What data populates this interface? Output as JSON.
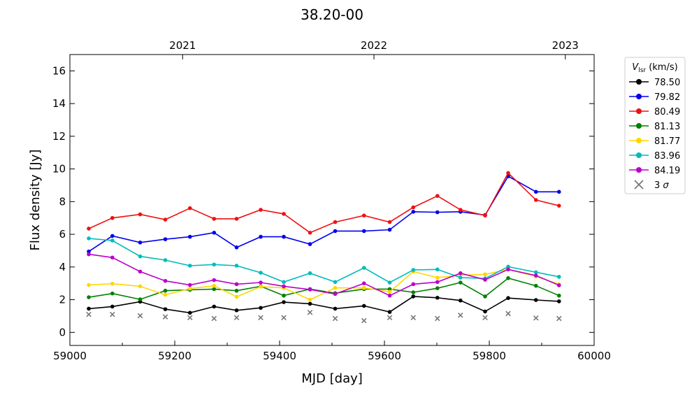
{
  "chart_data": {
    "type": "line",
    "title": "38.20-00",
    "xlabel": "MJD [day]",
    "ylabel": "Flux density [Jy]",
    "xlim": [
      59000,
      60000
    ],
    "ylim": [
      -0.8,
      17
    ],
    "xticks": [
      59000,
      59200,
      59400,
      59600,
      59800,
      60000
    ],
    "xtick_labels": [
      "59000",
      "59200",
      "59400",
      "59600",
      "59800",
      "60000"
    ],
    "yticks": [
      0,
      2,
      4,
      6,
      8,
      10,
      12,
      14,
      16
    ],
    "ytick_labels": [
      "0",
      "2",
      "4",
      "6",
      "8",
      "10",
      "12",
      "14",
      "16"
    ],
    "top_axis": {
      "ticks": [
        59215,
        59580,
        59945
      ],
      "labels": [
        "2021",
        "2022",
        "2023"
      ]
    },
    "grid": false,
    "legend": {
      "placement": "outside-right",
      "title_main": "V",
      "title_sub": "lsr",
      "title_unit": " (km/s)"
    },
    "x": [
      59036,
      59081,
      59134,
      59182,
      59229,
      59275,
      59318,
      59364,
      59408,
      59458,
      59506,
      59561,
      59610,
      59655,
      59701,
      59745,
      59792,
      59836,
      59889,
      59933
    ],
    "series": [
      {
        "name": "78.50",
        "color": "#000000",
        "values": [
          1.45,
          1.58,
          1.88,
          1.42,
          1.2,
          1.58,
          1.35,
          1.5,
          1.85,
          1.75,
          1.45,
          1.62,
          1.25,
          2.2,
          2.12,
          1.95,
          1.28,
          2.1,
          1.98,
          1.9
        ]
      },
      {
        "name": "79.82",
        "color": "#0000ee",
        "values": [
          4.95,
          5.9,
          5.5,
          5.7,
          5.85,
          6.1,
          5.2,
          5.85,
          5.85,
          5.4,
          6.2,
          6.2,
          6.28,
          7.38,
          7.35,
          7.38,
          7.18,
          9.55,
          8.6,
          8.6
        ]
      },
      {
        "name": "80.49",
        "color": "#ee1111",
        "values": [
          6.35,
          7.0,
          7.22,
          6.9,
          7.6,
          6.95,
          6.95,
          7.5,
          7.25,
          6.1,
          6.75,
          7.15,
          6.75,
          7.65,
          8.35,
          7.5,
          7.15,
          9.75,
          8.1,
          7.75
        ]
      },
      {
        "name": "81.13",
        "color": "#008000",
        "values": [
          2.15,
          2.38,
          2.02,
          2.55,
          2.6,
          2.65,
          2.55,
          2.82,
          2.25,
          2.65,
          2.4,
          2.65,
          2.65,
          2.45,
          2.7,
          3.05,
          2.2,
          3.32,
          2.85,
          2.25
        ]
      },
      {
        "name": "81.77",
        "color": "#ffd700",
        "values": [
          2.9,
          2.98,
          2.82,
          2.3,
          2.68,
          2.85,
          2.18,
          2.8,
          2.72,
          2.0,
          2.72,
          2.72,
          2.48,
          3.72,
          3.35,
          3.5,
          3.55,
          3.85,
          3.42,
          2.95
        ]
      },
      {
        "name": "83.96",
        "color": "#00bbbb",
        "values": [
          5.75,
          5.62,
          4.65,
          4.42,
          4.08,
          4.15,
          4.08,
          3.65,
          3.08,
          3.62,
          3.08,
          3.95,
          3.05,
          3.82,
          3.85,
          3.35,
          3.3,
          4.02,
          3.68,
          3.4
        ]
      },
      {
        "name": "84.19",
        "color": "#bb00cc",
        "values": [
          4.78,
          4.58,
          3.72,
          3.15,
          2.9,
          3.2,
          2.95,
          3.05,
          2.82,
          2.62,
          2.35,
          3.0,
          2.25,
          2.95,
          3.08,
          3.62,
          3.22,
          3.85,
          3.48,
          2.88
        ]
      }
    ],
    "sigma": {
      "name": "3",
      "name_symbol": "σ",
      "color": "#777777",
      "values": [
        1.1,
        1.1,
        1.02,
        0.95,
        0.9,
        0.85,
        0.9,
        0.9,
        0.9,
        1.22,
        0.85,
        0.72,
        0.9,
        0.9,
        0.85,
        1.05,
        0.9,
        1.15,
        0.88,
        0.85
      ]
    }
  }
}
